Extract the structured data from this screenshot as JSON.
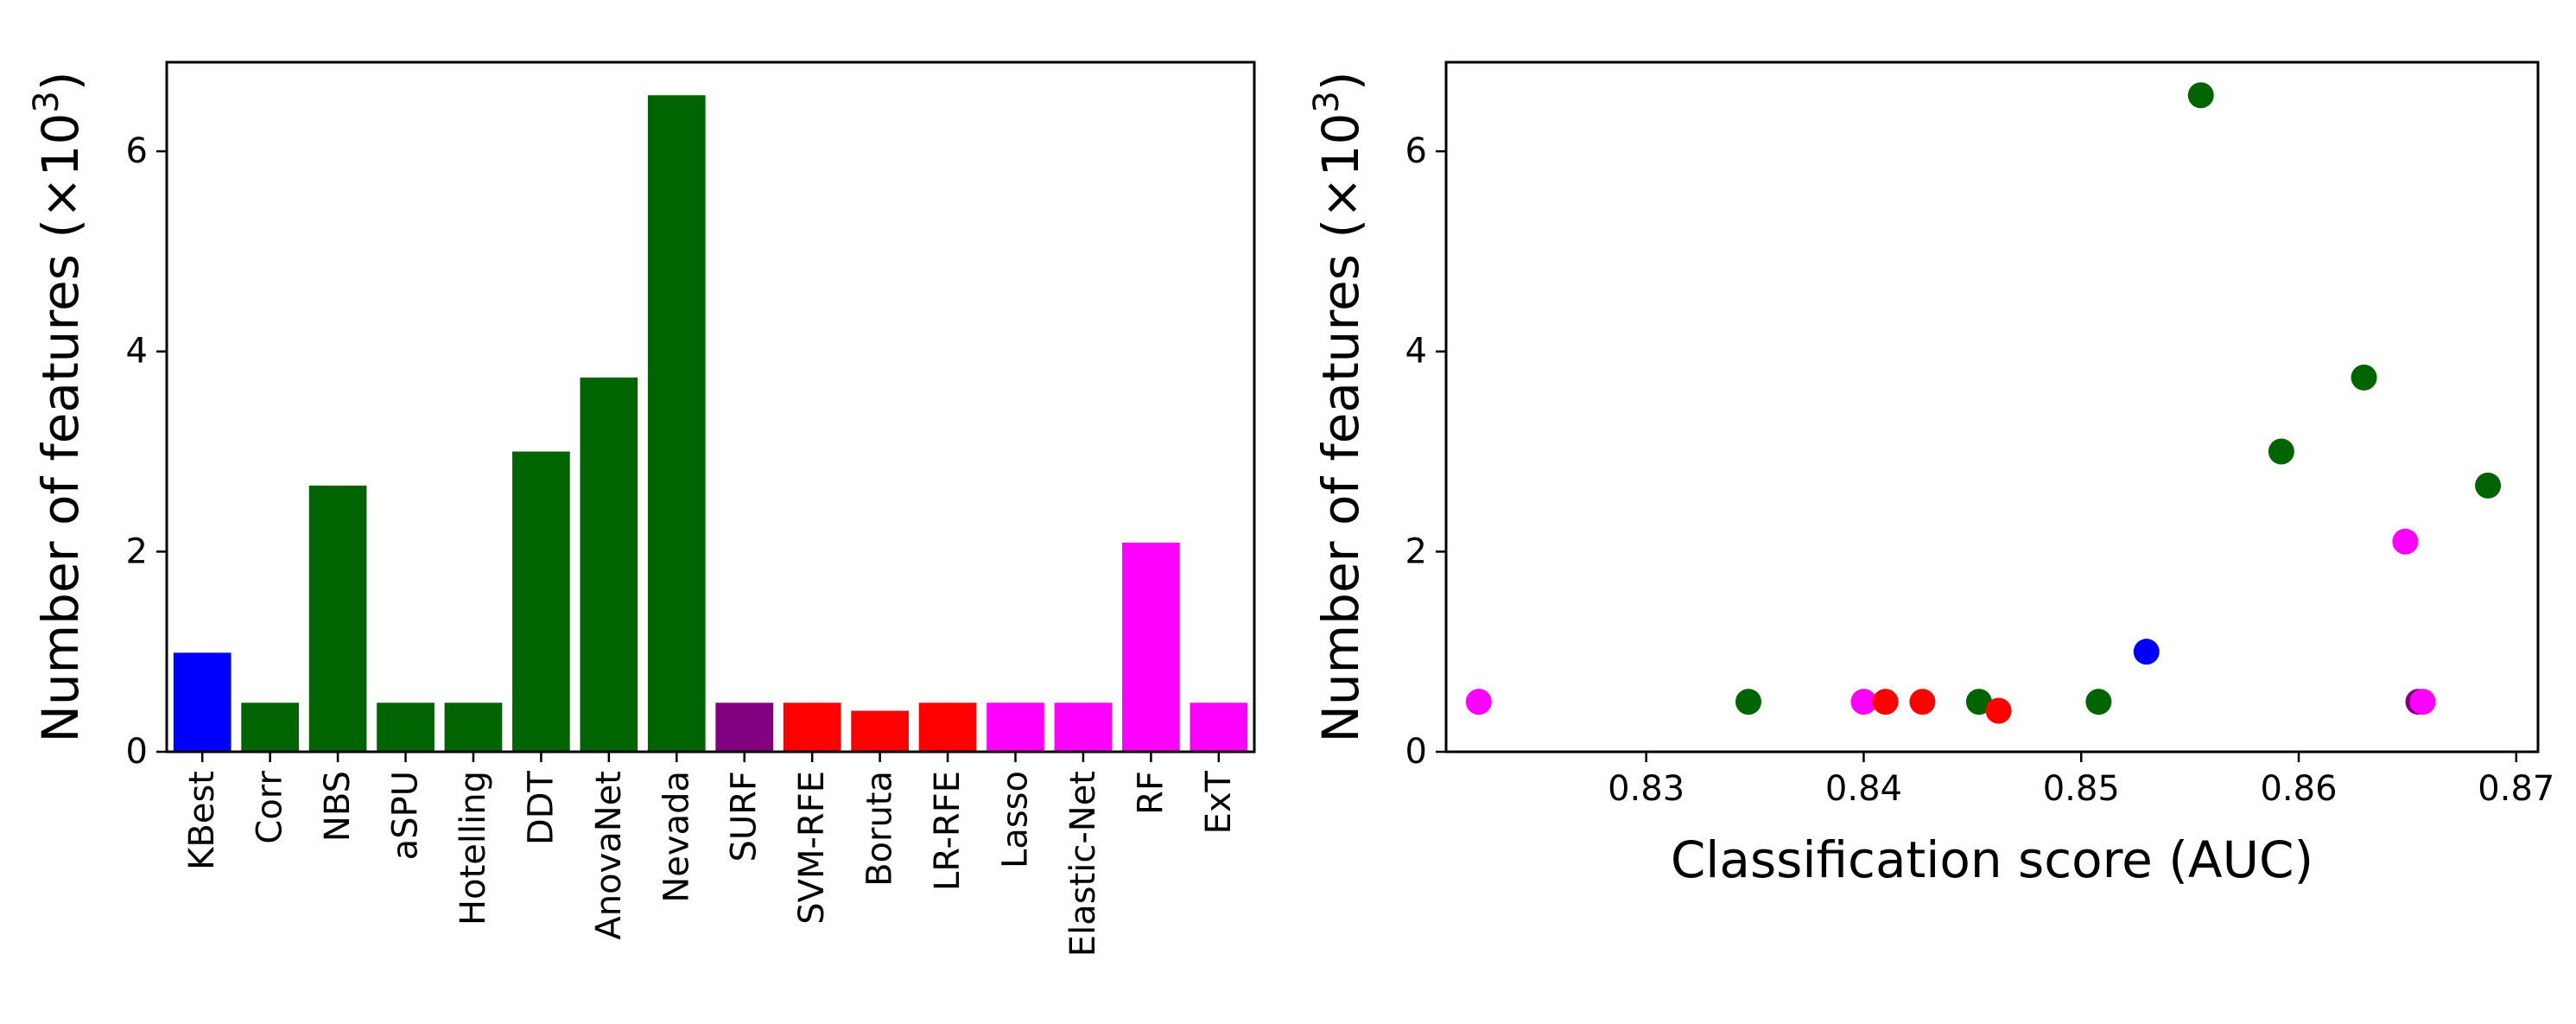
{
  "chart_data": [
    {
      "type": "bar",
      "categories": [
        "KBest",
        "Corr",
        "NBS",
        "aSPU",
        "Hotelling",
        "DDT",
        "AnovaNet",
        "Nevada",
        "SURF",
        "SVM-RFE",
        "Boruta",
        "LR-RFE",
        "Lasso",
        "Elastic-Net",
        "RF",
        "ExT"
      ],
      "values": [
        0.99,
        0.49,
        2.66,
        0.49,
        0.49,
        3.0,
        3.74,
        6.56,
        0.49,
        0.49,
        0.41,
        0.49,
        0.49,
        0.49,
        2.09,
        0.49
      ],
      "colors": [
        "#0000ff",
        "#006400",
        "#006400",
        "#006400",
        "#006400",
        "#006400",
        "#006400",
        "#006400",
        "#800080",
        "#ff0000",
        "#ff0000",
        "#ff0000",
        "#ff00ff",
        "#ff00ff",
        "#ff00ff",
        "#ff00ff"
      ],
      "ylabel_text": "Number of features (×10",
      "ylabel_sup": "3",
      "ylabel_close": ")",
      "ylim": [
        0,
        6.89
      ],
      "yticks": [
        0,
        2,
        4,
        6
      ],
      "ytick_labels": [
        "0",
        "2",
        "4",
        "6"
      ]
    },
    {
      "type": "scatter",
      "points": [
        {
          "x": 0.8223,
          "y": 0.5,
          "color": "#ff00ff"
        },
        {
          "x": 0.8347,
          "y": 0.5,
          "color": "#006400"
        },
        {
          "x": 0.84,
          "y": 0.5,
          "color": "#ff00ff"
        },
        {
          "x": 0.841,
          "y": 0.5,
          "color": "#ff0000"
        },
        {
          "x": 0.8427,
          "y": 0.5,
          "color": "#ff0000"
        },
        {
          "x": 0.8453,
          "y": 0.5,
          "color": "#006400"
        },
        {
          "x": 0.8462,
          "y": 0.41,
          "color": "#ff0000"
        },
        {
          "x": 0.8508,
          "y": 0.5,
          "color": "#006400"
        },
        {
          "x": 0.853,
          "y": 1.0,
          "color": "#0000ff"
        },
        {
          "x": 0.8555,
          "y": 6.56,
          "color": "#006400"
        },
        {
          "x": 0.8592,
          "y": 3.0,
          "color": "#006400"
        },
        {
          "x": 0.863,
          "y": 3.74,
          "color": "#006400"
        },
        {
          "x": 0.8649,
          "y": 2.1,
          "color": "#ff00ff"
        },
        {
          "x": 0.8655,
          "y": 0.5,
          "color": "#800080"
        },
        {
          "x": 0.8657,
          "y": 0.5,
          "color": "#ff00ff"
        },
        {
          "x": 0.8687,
          "y": 2.66,
          "color": "#006400"
        }
      ],
      "xlabel": "Classification score (AUC)",
      "ylabel_text": "Number of features (×10",
      "ylabel_sup": "3",
      "ylabel_close": ")",
      "xlim": [
        0.8208,
        0.871
      ],
      "ylim": [
        0,
        6.89
      ],
      "xticks": [
        0.83,
        0.84,
        0.85,
        0.86,
        0.87
      ],
      "xtick_labels": [
        "0.83",
        "0.84",
        "0.85",
        "0.86",
        "0.87"
      ],
      "yticks": [
        0,
        2,
        4,
        6
      ],
      "ytick_labels": [
        "0",
        "2",
        "4",
        "6"
      ]
    }
  ]
}
